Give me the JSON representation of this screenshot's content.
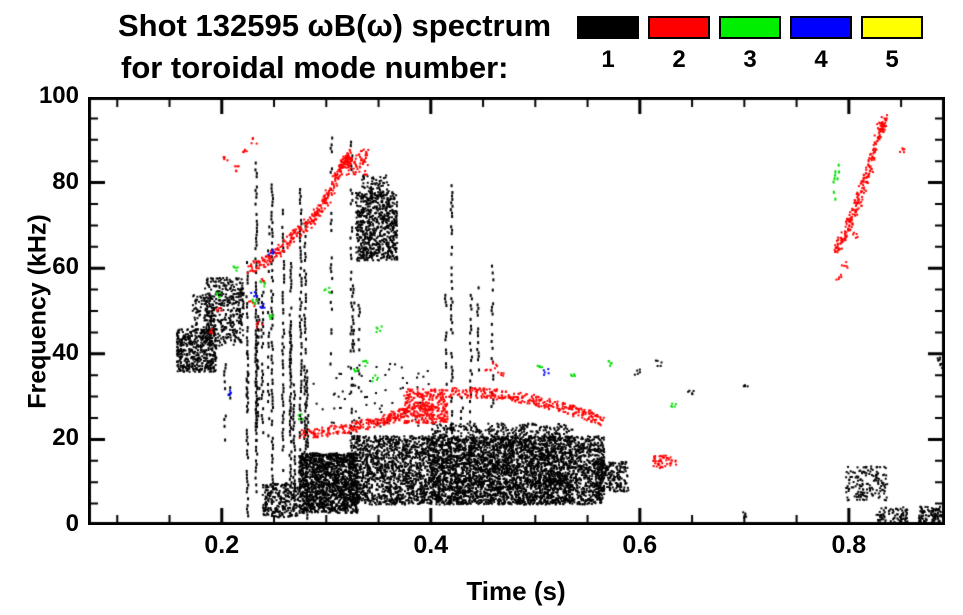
{
  "header": {
    "title_line1": "Shot 132595 ωB(ω) spectrum",
    "title_line2": "for toroidal mode number:"
  },
  "legend": {
    "items": [
      {
        "label": "1",
        "color": "#000000"
      },
      {
        "label": "2",
        "color": "#ff0000"
      },
      {
        "label": "3",
        "color": "#00ee00"
      },
      {
        "label": "4",
        "color": "#0000ff"
      },
      {
        "label": "5",
        "color": "#ffff00"
      }
    ]
  },
  "chart_data": {
    "type": "scatter",
    "title": "Shot 132595 ωB(ω) spectrum for toroidal mode number: 1-5",
    "xlabel": "Time (s)",
    "ylabel": "Frequency (kHz)",
    "xlim": [
      0.072,
      0.892
    ],
    "ylim": [
      0,
      100
    ],
    "xticks": [
      0.2,
      0.4,
      0.6,
      0.8
    ],
    "xtick_labels": [
      "0.2",
      "0.4",
      "0.6",
      "0.8"
    ],
    "yticks": [
      0,
      20,
      40,
      60,
      80,
      100
    ],
    "ytick_labels": [
      "0",
      "20",
      "40",
      "60",
      "80",
      "100"
    ],
    "x_minor_step": 0.05,
    "y_minor_step": 5,
    "grid": false,
    "legend_position": "top-right",
    "series_colors": {
      "1": "#000000",
      "2": "#ff0000",
      "3": "#00dd00",
      "4": "#0000ff",
      "5": "#ffff00"
    },
    "clusters": [
      {
        "mode": "1",
        "type": "blob",
        "t": [
          0.156,
          0.194
        ],
        "f": [
          36,
          46
        ],
        "n": 460
      },
      {
        "mode": "1",
        "type": "blob",
        "t": [
          0.17,
          0.193
        ],
        "f": [
          45,
          54
        ],
        "n": 90
      },
      {
        "mode": "1",
        "type": "blob",
        "t": [
          0.182,
          0.22
        ],
        "f": [
          42,
          58
        ],
        "n": 420
      },
      {
        "mode": "1",
        "type": "vstreaks",
        "t": [
          0.196,
          0.246
        ],
        "f": [
          12,
          82
        ],
        "k": 6,
        "fill": 0.3
      },
      {
        "mode": "1",
        "type": "vstreaks",
        "t": [
          0.219,
          0.285
        ],
        "f": [
          1,
          97
        ],
        "k": 12,
        "fill": 0.7
      },
      {
        "mode": "1",
        "type": "blob",
        "t": [
          0.238,
          0.272
        ],
        "f": [
          2,
          10
        ],
        "n": 260
      },
      {
        "mode": "1",
        "type": "band",
        "t": [
          0.273,
          0.329
        ],
        "f": [
          3,
          17
        ],
        "n": 1500
      },
      {
        "mode": "1",
        "type": "band",
        "t": [
          0.322,
          0.565
        ],
        "f": [
          5,
          21
        ],
        "n": 4300
      },
      {
        "mode": "1",
        "type": "band",
        "t": [
          0.4,
          0.535
        ],
        "f": [
          5,
          24
        ],
        "n": 1400
      },
      {
        "mode": "1",
        "type": "vstreaks",
        "t": [
          0.3,
          0.336
        ],
        "f": [
          20,
          97
        ],
        "k": 4,
        "fill": 0.4
      },
      {
        "mode": "1",
        "type": "blob",
        "t": [
          0.327,
          0.367
        ],
        "f": [
          62,
          78
        ],
        "n": 700
      },
      {
        "mode": "1",
        "type": "blob",
        "t": [
          0.333,
          0.36
        ],
        "f": [
          76,
          82
        ],
        "n": 70
      },
      {
        "mode": "1",
        "type": "vstreaks",
        "t": [
          0.398,
          0.46
        ],
        "f": [
          22,
          95
        ],
        "k": 6,
        "fill": 0.5
      },
      {
        "mode": "1",
        "type": "blob",
        "t": [
          0.273,
          0.4
        ],
        "f": [
          23,
          38
        ],
        "n": 70
      },
      {
        "mode": "1",
        "type": "blob",
        "t": [
          0.556,
          0.588
        ],
        "f": [
          8,
          15
        ],
        "n": 220
      },
      {
        "mode": "1",
        "type": "blob",
        "t": [
          0.796,
          0.836
        ],
        "f": [
          6,
          14
        ],
        "n": 150
      },
      {
        "mode": "1",
        "type": "blob",
        "t": [
          0.825,
          0.856
        ],
        "f": [
          0.5,
          4.5
        ],
        "n": 80
      },
      {
        "mode": "1",
        "type": "blob",
        "t": [
          0.866,
          0.888
        ],
        "f": [
          0.3,
          4.5
        ],
        "n": 110
      },
      {
        "mode": "1",
        "type": "dots",
        "pts": [
          [
            0.884,
            39
          ],
          [
            0.889,
            37.5
          ],
          [
            0.597,
            36
          ],
          [
            0.617,
            38
          ],
          [
            0.7,
            33
          ],
          [
            0.698,
            2.5
          ],
          [
            0.648,
            31
          ]
        ]
      },
      {
        "mode": "2",
        "type": "trace",
        "pts": [
          [
            0.225,
            60
          ],
          [
            0.246,
            62.5
          ],
          [
            0.265,
            67
          ],
          [
            0.284,
            71
          ],
          [
            0.299,
            76
          ],
          [
            0.313,
            84
          ],
          [
            0.322,
            86
          ]
        ],
        "jit": 1.3,
        "n": 330
      },
      {
        "mode": "2",
        "type": "blob",
        "t": [
          0.318,
          0.34
        ],
        "f": [
          82,
          88
        ],
        "n": 70
      },
      {
        "mode": "2",
        "type": "dots",
        "pts": [
          [
            0.203,
            86
          ],
          [
            0.214,
            83.5
          ],
          [
            0.222,
            88
          ],
          [
            0.189,
            45.5
          ],
          [
            0.196,
            50.5
          ],
          [
            0.23,
            90
          ],
          [
            0.228,
            52
          ],
          [
            0.235,
            47
          ],
          [
            0.24,
            57
          ]
        ]
      },
      {
        "mode": "2",
        "type": "trace",
        "pts": [
          [
            0.275,
            21.5
          ],
          [
            0.313,
            22.5
          ],
          [
            0.351,
            24.5
          ],
          [
            0.375,
            26.5
          ]
        ],
        "jit": 1.2,
        "n": 220
      },
      {
        "mode": "2",
        "type": "blob",
        "t": [
          0.373,
          0.415
        ],
        "f": [
          24,
          32
        ],
        "n": 330
      },
      {
        "mode": "2",
        "type": "trace",
        "pts": [
          [
            0.418,
            31.2
          ],
          [
            0.456,
            31
          ],
          [
            0.495,
            29.6
          ],
          [
            0.533,
            27.2
          ],
          [
            0.563,
            24.6
          ]
        ],
        "jit": 1.2,
        "n": 300
      },
      {
        "mode": "2",
        "type": "dots",
        "pts": [
          [
            0.454,
            36.5
          ],
          [
            0.46,
            37.5
          ],
          [
            0.466,
            35.8
          ]
        ]
      },
      {
        "mode": "2",
        "type": "blob",
        "t": [
          0.612,
          0.634
        ],
        "f": [
          13.5,
          16.5
        ],
        "n": 50
      },
      {
        "mode": "2",
        "type": "trace",
        "pts": [
          [
            0.787,
            64
          ],
          [
            0.799,
            70
          ],
          [
            0.809,
            76.5
          ],
          [
            0.818,
            83
          ],
          [
            0.826,
            90.5
          ],
          [
            0.833,
            95
          ]
        ],
        "jit": 1.4,
        "n": 240
      },
      {
        "mode": "2",
        "type": "dots",
        "pts": [
          [
            0.85,
            88
          ],
          [
            0.79,
            58
          ],
          [
            0.795,
            61
          ],
          [
            0.805,
            68
          ]
        ]
      },
      {
        "mode": "3",
        "type": "dots",
        "pts": [
          [
            0.196,
            54
          ],
          [
            0.213,
            60
          ],
          [
            0.23,
            52.5
          ],
          [
            0.238,
            56.5
          ],
          [
            0.246,
            49
          ],
          [
            0.275,
            25.5
          ],
          [
            0.327,
            36
          ],
          [
            0.337,
            38
          ],
          [
            0.346,
            34.5
          ],
          [
            0.504,
            37.5
          ],
          [
            0.536,
            35.5
          ],
          [
            0.571,
            38
          ],
          [
            0.631,
            28
          ],
          [
            0.3,
            55
          ],
          [
            0.35,
            46
          ]
        ]
      },
      {
        "mode": "3",
        "type": "vstreaks",
        "t": [
          0.78,
          0.798
        ],
        "f": [
          76,
          89
        ],
        "k": 2,
        "fill": 0.5
      },
      {
        "mode": "4",
        "type": "dots",
        "pts": [
          [
            0.23,
            54
          ],
          [
            0.238,
            51.5
          ],
          [
            0.246,
            64
          ],
          [
            0.509,
            36
          ],
          [
            0.205,
            31
          ]
        ]
      }
    ]
  }
}
